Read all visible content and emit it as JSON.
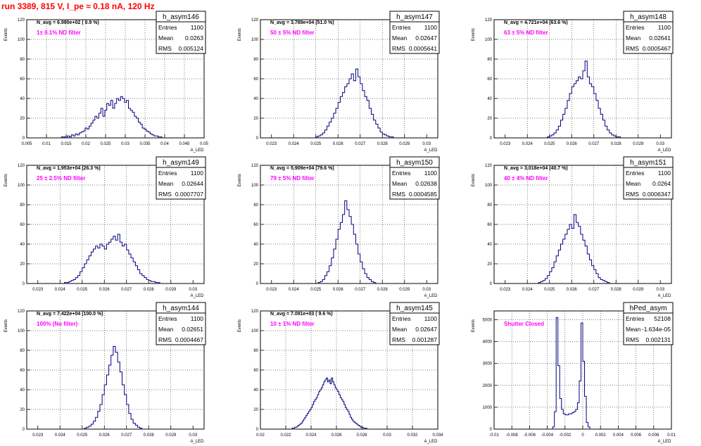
{
  "page_title": "run 3389,   815 V, I_pe ≈ 0.18 nA, 120 Hz",
  "colors": {
    "title": "#ff0000",
    "histogram": "#000080",
    "annotation": "#ff00ff",
    "grid": "#000000"
  },
  "chart_data": [
    {
      "type": "bar",
      "name": "h_asym146",
      "title": "",
      "navg": "N_avg = 6.990e+02 ( 0.9 %)",
      "filter": "1± 0.1% ND filter",
      "stats": {
        "entries": "1100",
        "mean": "0.0263",
        "rms": "0.005124"
      },
      "stat_labels": {
        "entries": "Entries",
        "mean": "Mean",
        "rms": "RMS"
      },
      "xlabel": "A_LED",
      "ylabel": "Events",
      "xlim": [
        0.005,
        0.05
      ],
      "ylim": [
        0,
        120
      ],
      "xticks": [
        "0.005",
        "0.01",
        "0.015",
        "0.02",
        "0.025",
        "0.03",
        "0.035",
        "0.04",
        "0.045",
        "0.05"
      ],
      "yticks": [
        "0",
        "20",
        "40",
        "60",
        "80",
        "100",
        "120"
      ],
      "grid": true,
      "histogram": {
        "x_start": 0.0138,
        "bin_width": 0.0005,
        "counts": [
          1,
          1,
          0,
          2,
          1,
          3,
          2,
          4,
          3,
          5,
          6,
          7,
          10,
          9,
          12,
          15,
          18,
          22,
          20,
          25,
          30,
          22,
          28,
          35,
          33,
          38,
          30,
          35,
          40,
          38,
          42,
          40,
          36,
          38,
          30,
          28,
          26,
          22,
          20,
          16,
          14,
          10,
          9,
          7,
          6,
          4,
          3,
          2,
          2,
          1,
          1
        ]
      }
    },
    {
      "type": "bar",
      "name": "h_asym147",
      "title": "",
      "navg": "N_avg = 3.789e+04 (51.0 %)",
      "filter": "50 ± 5% ND filter",
      "stats": {
        "entries": "1100",
        "mean": "0.02647",
        "rms": "0.0005641"
      },
      "stat_labels": {
        "entries": "Entries",
        "mean": "Mean",
        "rms": "RMS"
      },
      "xlabel": "A_LED",
      "ylabel": "Events",
      "xlim": [
        0.0225,
        0.0305
      ],
      "ylim": [
        0,
        120
      ],
      "xticks": [
        "0.023",
        "0.024",
        "0.025",
        "0.026",
        "0.027",
        "0.028",
        "0.029",
        "0.03"
      ],
      "yticks": [
        "0",
        "20",
        "40",
        "60",
        "80",
        "100",
        "120"
      ],
      "grid": true,
      "histogram": {
        "x_start": 0.025,
        "bin_width": 0.0001,
        "counts": [
          1,
          2,
          3,
          5,
          8,
          12,
          16,
          20,
          25,
          30,
          36,
          42,
          46,
          52,
          55,
          60,
          65,
          58,
          70,
          62,
          55,
          48,
          42,
          38,
          30,
          24,
          18,
          14,
          10,
          6,
          4,
          3,
          2,
          1,
          1
        ]
      }
    },
    {
      "type": "bar",
      "name": "h_asym148",
      "title": "",
      "navg": "N_avg = 4.721e+04 (63.6 %)",
      "filter": "63 ± 5% ND filter",
      "stats": {
        "entries": "1100",
        "mean": "0.02641",
        "rms": "0.0005467"
      },
      "stat_labels": {
        "entries": "Entries",
        "mean": "Mean",
        "rms": "RMS"
      },
      "xlabel": "A_LED",
      "ylabel": "Events",
      "xlim": [
        0.0225,
        0.0305
      ],
      "ylim": [
        0,
        120
      ],
      "xticks": [
        "0.023",
        "0.024",
        "0.025",
        "0.026",
        "0.027",
        "0.028",
        "0.029",
        "0.03"
      ],
      "yticks": [
        "0",
        "20",
        "40",
        "60",
        "80",
        "100",
        "120"
      ],
      "grid": true,
      "histogram": {
        "x_start": 0.0249,
        "bin_width": 0.0001,
        "counts": [
          1,
          2,
          3,
          5,
          8,
          12,
          18,
          24,
          30,
          38,
          45,
          52,
          55,
          58,
          62,
          60,
          68,
          78,
          62,
          55,
          52,
          45,
          38,
          30,
          24,
          18,
          12,
          8,
          5,
          3,
          2,
          1,
          1
        ]
      }
    },
    {
      "type": "bar",
      "name": "h_asym149",
      "title": "",
      "navg": "N_avg = 1.953e+04 (26.3 %)",
      "filter": "25 ± 2.5% ND filter",
      "stats": {
        "entries": "1100",
        "mean": "0.02644",
        "rms": "0.0007707"
      },
      "stat_labels": {
        "entries": "Entries",
        "mean": "Mean",
        "rms": "RMS"
      },
      "xlabel": "A_LED",
      "ylabel": "Events",
      "xlim": [
        0.0225,
        0.0305
      ],
      "ylim": [
        0,
        120
      ],
      "xticks": [
        "0.023",
        "0.024",
        "0.025",
        "0.026",
        "0.027",
        "0.028",
        "0.029",
        "0.03"
      ],
      "yticks": [
        "0",
        "20",
        "40",
        "60",
        "80",
        "100",
        "120"
      ],
      "grid": true,
      "histogram": {
        "x_start": 0.0242,
        "bin_width": 0.0001,
        "counts": [
          1,
          1,
          2,
          3,
          4,
          6,
          8,
          12,
          16,
          20,
          24,
          28,
          32,
          35,
          38,
          36,
          40,
          38,
          35,
          40,
          42,
          45,
          48,
          44,
          50,
          42,
          38,
          40,
          34,
          30,
          26,
          22,
          18,
          14,
          10,
          8,
          6,
          4,
          3,
          2,
          2,
          1,
          1
        ]
      }
    },
    {
      "type": "bar",
      "name": "h_asym150",
      "title": "",
      "navg": "N_avg = 5.909e+04 (79.6 %)",
      "filter": "79 ± 5% ND filter",
      "stats": {
        "entries": "1100",
        "mean": "0.02638",
        "rms": "0.0004585"
      },
      "stat_labels": {
        "entries": "Entries",
        "mean": "Mean",
        "rms": "RMS"
      },
      "xlabel": "A_LED",
      "ylabel": "Events",
      "xlim": [
        0.0225,
        0.0305
      ],
      "ylim": [
        0,
        120
      ],
      "xticks": [
        "0.023",
        "0.024",
        "0.025",
        "0.026",
        "0.027",
        "0.028",
        "0.029",
        "0.03"
      ],
      "yticks": [
        "0",
        "20",
        "40",
        "60",
        "80",
        "100",
        "120"
      ],
      "grid": true,
      "histogram": {
        "x_start": 0.0251,
        "bin_width": 0.0001,
        "counts": [
          1,
          2,
          4,
          8,
          12,
          18,
          26,
          35,
          45,
          55,
          62,
          70,
          84,
          75,
          68,
          60,
          50,
          40,
          30,
          22,
          15,
          10,
          6,
          4,
          2,
          1
        ]
      }
    },
    {
      "type": "bar",
      "name": "h_asym151",
      "title": "",
      "navg": "N_avg = 3.018e+04 (40.7 %)",
      "filter": "40 ± 4% ND filter",
      "stats": {
        "entries": "1100",
        "mean": "0.0264",
        "rms": "0.0006347"
      },
      "stat_labels": {
        "entries": "Entries",
        "mean": "Mean",
        "rms": "RMS"
      },
      "xlabel": "A_LED",
      "ylabel": "Events",
      "xlim": [
        0.0225,
        0.0305
      ],
      "ylim": [
        0,
        120
      ],
      "xticks": [
        "0.023",
        "0.024",
        "0.025",
        "0.026",
        "0.027",
        "0.028",
        "0.029",
        "0.03"
      ],
      "yticks": [
        "0",
        "20",
        "40",
        "60",
        "80",
        "100",
        "120"
      ],
      "grid": true,
      "histogram": {
        "x_start": 0.0245,
        "bin_width": 0.0001,
        "counts": [
          1,
          2,
          3,
          5,
          8,
          12,
          16,
          22,
          28,
          34,
          40,
          45,
          50,
          55,
          60,
          56,
          70,
          62,
          58,
          50,
          44,
          38,
          30,
          24,
          18,
          14,
          10,
          6,
          4,
          3,
          2,
          1
        ]
      }
    },
    {
      "type": "bar",
      "name": "h_asym144",
      "title": "",
      "navg": "N_avg = 7.422e+04 (100.0 %)",
      "filter": "100% (No filter)",
      "stats": {
        "entries": "1100",
        "mean": "0.02651",
        "rms": "0.0004467"
      },
      "stat_labels": {
        "entries": "Entries",
        "mean": "Mean",
        "rms": "RMS"
      },
      "xlabel": "A_LED",
      "ylabel": "Events",
      "xlim": [
        0.0225,
        0.0305
      ],
      "ylim": [
        0,
        120
      ],
      "xticks": [
        "0.023",
        "0.024",
        "0.025",
        "0.026",
        "0.027",
        "0.028",
        "0.029",
        "0.03"
      ],
      "yticks": [
        "0",
        "20",
        "40",
        "60",
        "80",
        "100",
        "120"
      ],
      "grid": true,
      "histogram": {
        "x_start": 0.0251,
        "bin_width": 0.0001,
        "counts": [
          1,
          2,
          3,
          5,
          8,
          12,
          18,
          25,
          35,
          45,
          55,
          65,
          75,
          84,
          78,
          68,
          58,
          45,
          35,
          25,
          16,
          10,
          6,
          4,
          2,
          1
        ]
      }
    },
    {
      "type": "bar",
      "name": "h_asym145",
      "title": "",
      "navg": "N_avg = 7.091e+03 ( 9.6 %)",
      "filter": "10 ± 1% ND filter",
      "stats": {
        "entries": "1100",
        "mean": "0.02647",
        "rms": "0.001287"
      },
      "stat_labels": {
        "entries": "Entries",
        "mean": "Mean",
        "rms": "RMS"
      },
      "xlabel": "A_LED",
      "ylabel": "Events",
      "xlim": [
        0.02,
        0.034
      ],
      "ylim": [
        0,
        120
      ],
      "xticks": [
        "0.02",
        "0.022",
        "0.024",
        "0.026",
        "0.028",
        "0.03",
        "0.032",
        "0.034"
      ],
      "yticks": [
        "0",
        "20",
        "40",
        "60",
        "80",
        "100",
        "120"
      ],
      "grid": true,
      "histogram": {
        "x_start": 0.0225,
        "bin_width": 0.0001,
        "counts": [
          1,
          1,
          2,
          2,
          3,
          4,
          5,
          6,
          8,
          10,
          12,
          14,
          16,
          18,
          20,
          22,
          25,
          28,
          30,
          32,
          35,
          38,
          40,
          42,
          45,
          48,
          50,
          52,
          48,
          50,
          46,
          52,
          48,
          45,
          42,
          40,
          38,
          35,
          32,
          30,
          28,
          25,
          22,
          20,
          18,
          15,
          12,
          10,
          8,
          7,
          6,
          5,
          4,
          3,
          2,
          2,
          1,
          1,
          1
        ]
      }
    },
    {
      "type": "bar",
      "name": "hPed_asym",
      "title": "",
      "navg": "",
      "filter": "Shutter Closed",
      "stats": {
        "entries": "52108",
        "mean": "-1.634e-05",
        "rms": "0.002131"
      },
      "stat_labels": {
        "entries": "Entries",
        "mean": "Mean",
        "rms": "RMS"
      },
      "xlabel": "A_LED",
      "ylabel": "Events",
      "xlim": [
        -0.01,
        0.01
      ],
      "ylim": [
        0,
        5400
      ],
      "xticks": [
        "-0.01",
        "-0.008",
        "-0.006",
        "-0.004",
        "-0.002",
        "0",
        "0.002",
        "0.004",
        "0.006",
        "0.008",
        "0.01"
      ],
      "yticks": [
        "0",
        "1000",
        "2000",
        "3000",
        "4000",
        "5000"
      ],
      "grid": true,
      "histogram": {
        "x_start": -0.0034,
        "bin_width": 0.0002,
        "counts": [
          100,
          800,
          5100,
          2900,
          1400,
          900,
          700,
          650,
          650,
          700,
          700,
          750,
          800,
          900,
          1200,
          2200,
          4850,
          3100,
          1500,
          300,
          100
        ]
      }
    }
  ]
}
